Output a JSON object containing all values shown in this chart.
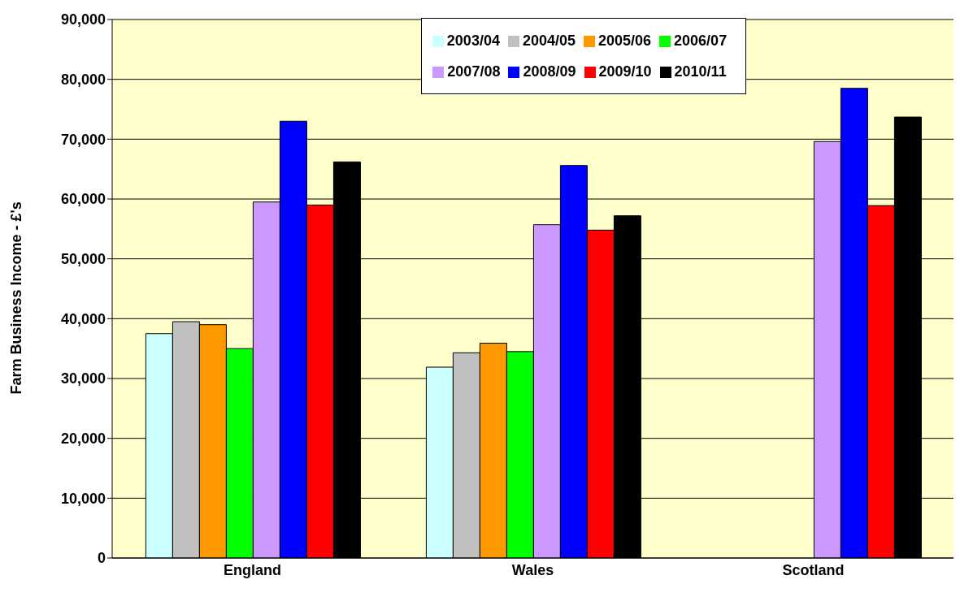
{
  "chart_data": {
    "type": "bar",
    "ylabel": "Farm Business Income - £'s",
    "categories": [
      "England",
      "Wales",
      "Scotland"
    ],
    "series": [
      {
        "name": "2003/04",
        "color": "#ccffff",
        "values": [
          37500,
          31900,
          null
        ]
      },
      {
        "name": "2004/05",
        "color": "#c0c0c0",
        "values": [
          39500,
          34300,
          null
        ]
      },
      {
        "name": "2005/06",
        "color": "#ff9900",
        "values": [
          39000,
          35900,
          null
        ]
      },
      {
        "name": "2006/07",
        "color": "#00ff00",
        "values": [
          35000,
          34500,
          null
        ]
      },
      {
        "name": "2007/08",
        "color": "#cc99ff",
        "values": [
          59500,
          55700,
          69600
        ]
      },
      {
        "name": "2008/09",
        "color": "#0000ff",
        "values": [
          73000,
          65600,
          78500
        ]
      },
      {
        "name": "2009/10",
        "color": "#ff0000",
        "values": [
          59000,
          54800,
          58900
        ]
      },
      {
        "name": "2010/11",
        "color": "#000000",
        "values": [
          66200,
          57200,
          73700
        ]
      }
    ],
    "ylim": [
      0,
      90000
    ],
    "yticks": [
      0,
      {
        "value": 10000,
        "label": "10,000"
      },
      {
        "value": 20000,
        "label": "20,000"
      },
      {
        "value": 30000,
        "label": "30,000"
      },
      {
        "value": 40000,
        "label": "40,000"
      },
      {
        "value": 50000,
        "label": "50,000"
      },
      {
        "value": 60000,
        "label": "60,000"
      },
      {
        "value": 70000,
        "label": "70,000"
      },
      {
        "value": 80000,
        "label": "80,000"
      },
      {
        "value": 90000,
        "label": "90,000"
      }
    ],
    "grid": "y",
    "legend": "top"
  }
}
